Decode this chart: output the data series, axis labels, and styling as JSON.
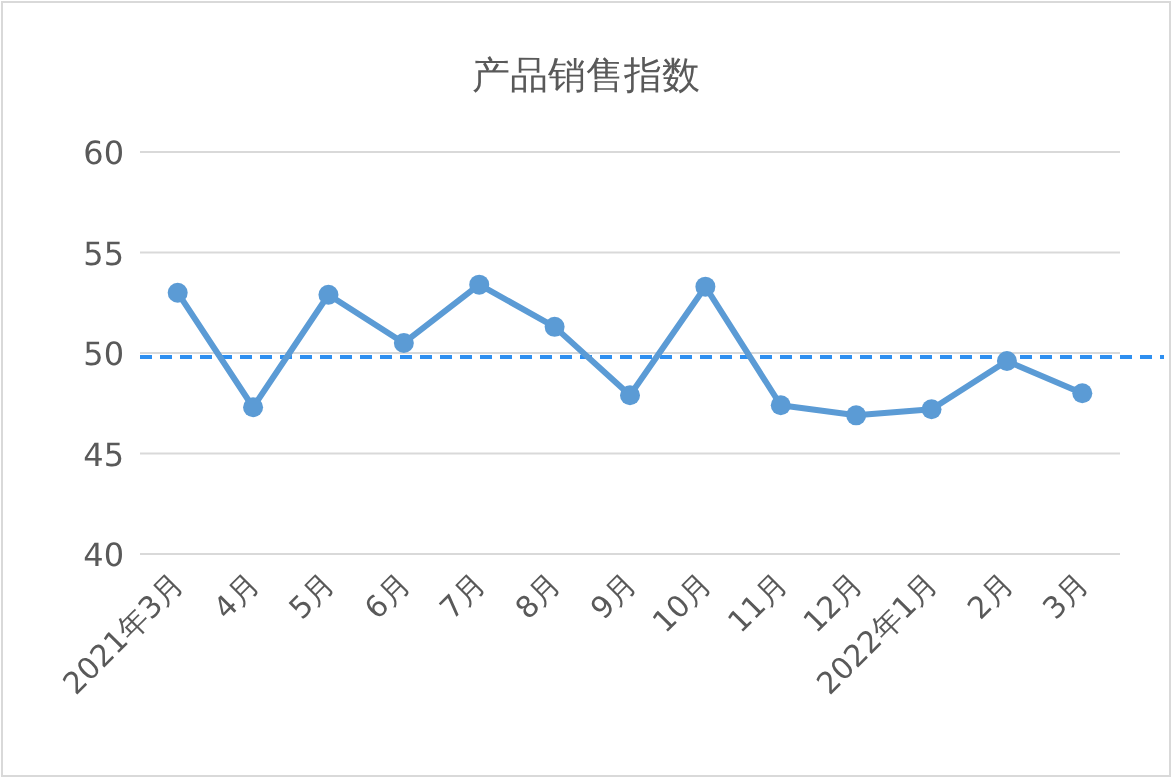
{
  "chart_data": {
    "type": "line",
    "title": "产品销售指数",
    "categories": [
      "2021年3月",
      "4月",
      "5月",
      "6月",
      "7月",
      "8月",
      "9月",
      "10月",
      "11月",
      "12月",
      "2022年1月",
      "2月",
      "3月"
    ],
    "series": [
      {
        "color": "#5b9bd5",
        "values": [
          53.0,
          47.3,
          52.9,
          50.5,
          53.4,
          51.3,
          47.9,
          53.3,
          47.4,
          46.9,
          47.2,
          49.6,
          48.0
        ]
      }
    ],
    "ylim": [
      40,
      60
    ],
    "yticks": [
      40,
      45,
      50,
      55,
      60
    ],
    "grid": "y",
    "marker": "circle",
    "line_style": "solid",
    "ref_lines": [
      {
        "axis": "y",
        "value": 49.8,
        "color": "#2e8ff0",
        "line_style": "dashed"
      }
    ]
  }
}
